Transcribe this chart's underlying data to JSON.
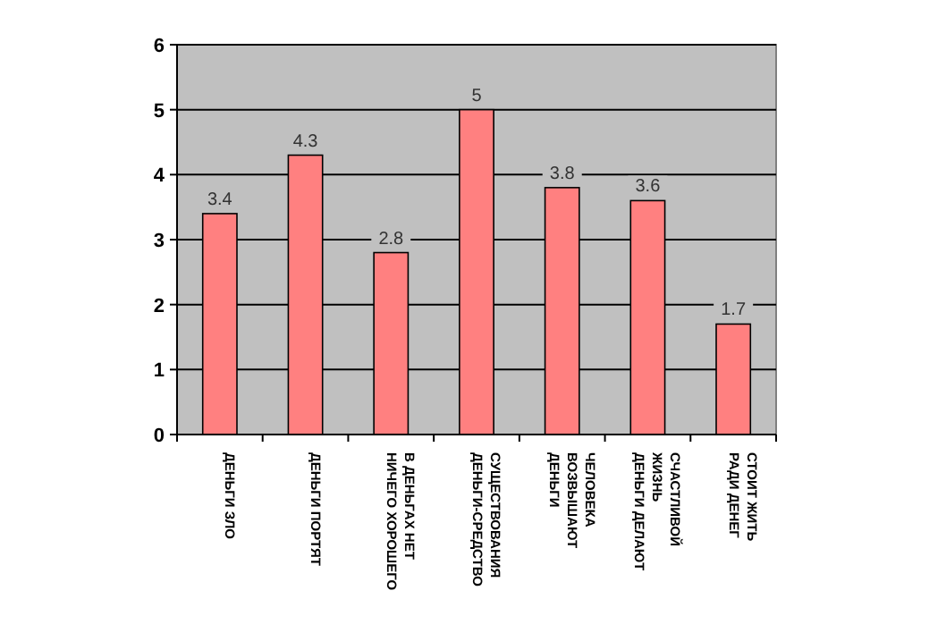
{
  "chart_data": {
    "type": "bar",
    "categories": [
      "ДЕНЬГИ ЗЛО",
      "ДЕНЬГИ ПОРТЯТ",
      "НИЧЕГО ХОРОШЕГО В ДЕНЬГАХ НЕТ",
      "ДЕНЬГИ-СРЕДСТВО СУЩЕСТВОВАНИЯ",
      "ДЕНЬГИ ВОЗВЫШАЮТ ЧЕЛОВЕКА",
      "ДЕНЬГИ ДЕЛАЮТ ЖИЗНЬ СЧАСТЛИВОЙ",
      "РАДИ ДЕНЕГ СТОИТ ЖИТЬ"
    ],
    "values": [
      3.4,
      4.3,
      2.8,
      5,
      3.8,
      3.6,
      1.7
    ],
    "color": "#ff8080",
    "ylim": [
      0,
      6
    ],
    "yticks": [
      0,
      1,
      2,
      3,
      4,
      5,
      6
    ],
    "grid": "y",
    "data_labels": true
  }
}
